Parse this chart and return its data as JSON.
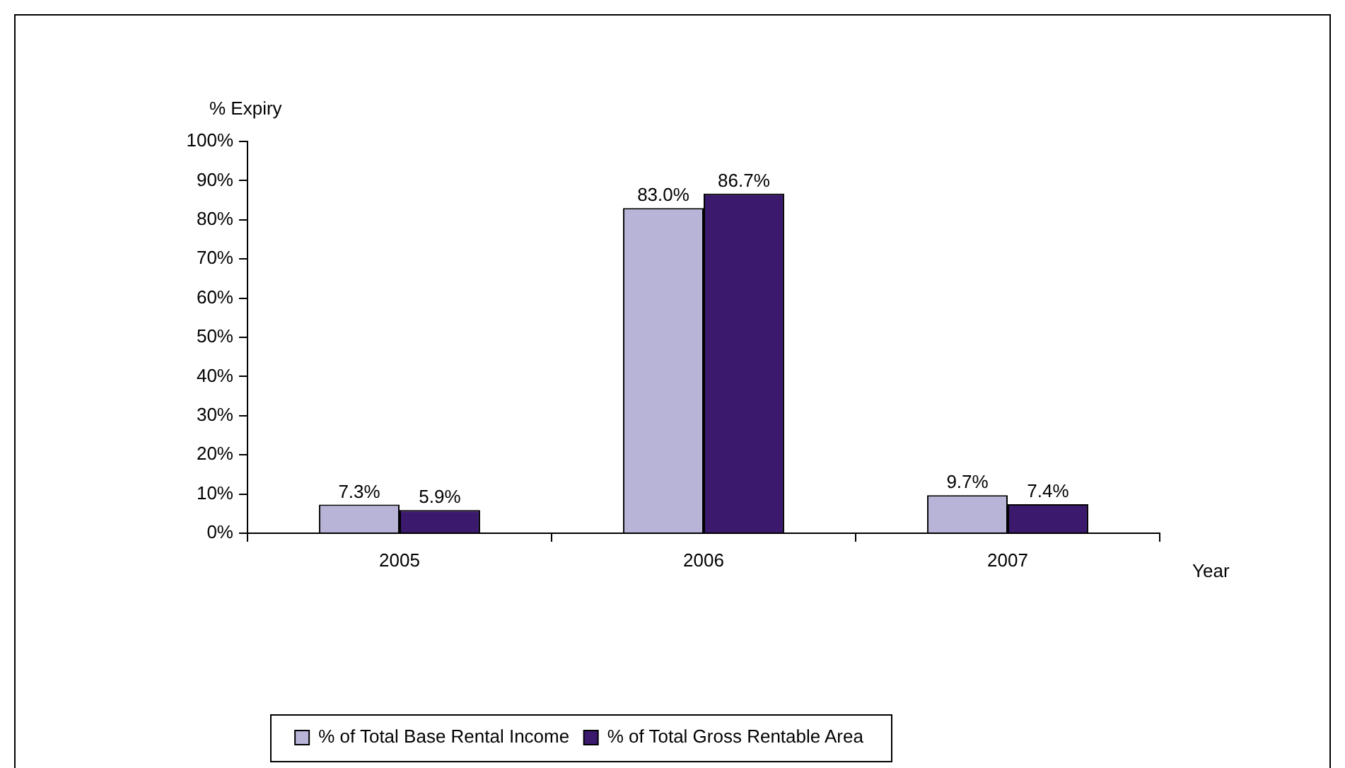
{
  "chart_data": {
    "type": "bar",
    "ylabel": "% Expiry",
    "xlabel": "Year",
    "categories": [
      "2005",
      "2006",
      "2007"
    ],
    "series": [
      {
        "name": "% of Total Base Rental Income",
        "color": "#b8b4d8",
        "values": [
          7.3,
          83.0,
          9.7
        ],
        "value_labels": [
          "7.3%",
          "83.0%",
          "9.7%"
        ]
      },
      {
        "name": "% of Total Gross Rentable Area",
        "color": "#3b1a6e",
        "values": [
          5.9,
          86.7,
          7.4
        ],
        "value_labels": [
          "5.9%",
          "86.7%",
          "7.4%"
        ]
      }
    ],
    "ylim": [
      0,
      100
    ],
    "yticks": [
      {
        "value": 0,
        "label": "0%"
      },
      {
        "value": 10,
        "label": "10%"
      },
      {
        "value": 20,
        "label": "20%"
      },
      {
        "value": 30,
        "label": "30%"
      },
      {
        "value": 40,
        "label": "40%"
      },
      {
        "value": 50,
        "label": "50%"
      },
      {
        "value": 60,
        "label": "60%"
      },
      {
        "value": 70,
        "label": "70%"
      },
      {
        "value": 80,
        "label": "80%"
      },
      {
        "value": 90,
        "label": "90%"
      },
      {
        "value": 100,
        "label": "100%"
      }
    ],
    "grid": false,
    "legend": "bottom"
  }
}
